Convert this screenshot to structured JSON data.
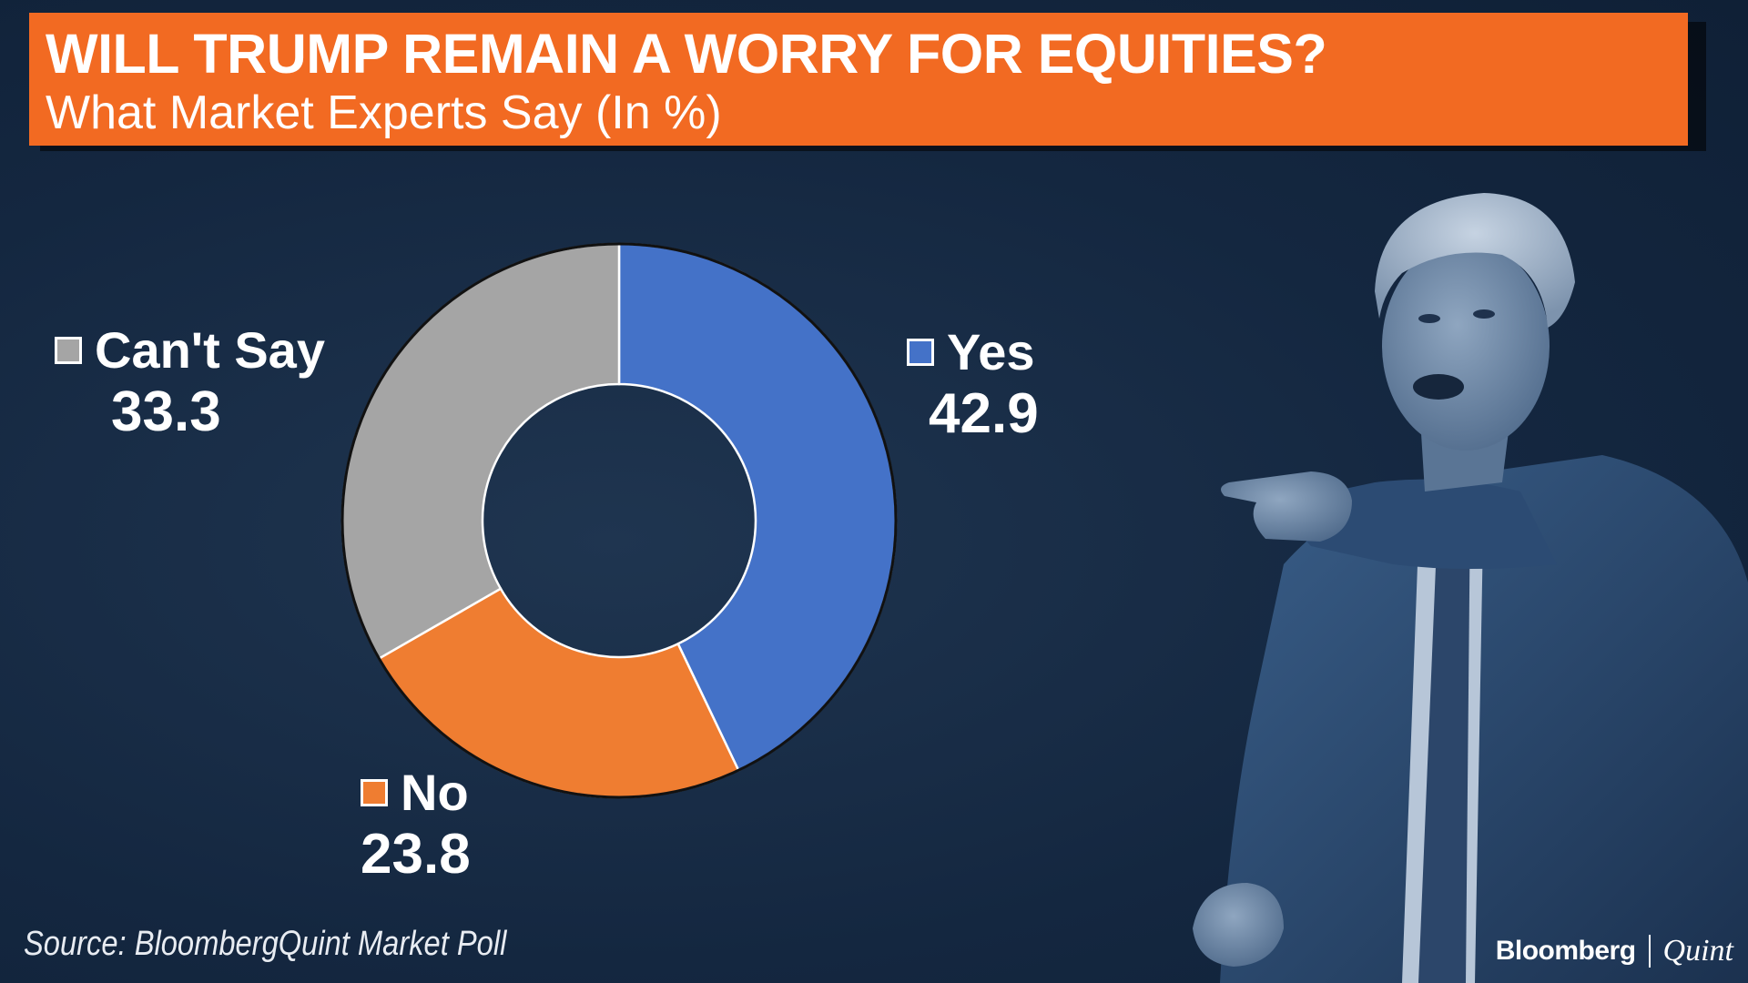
{
  "header": {
    "title": "WILL TRUMP REMAIN A WORRY FOR EQUITIES?",
    "subtitle": "What Market Experts Say (In %)"
  },
  "chart_data": {
    "type": "pie",
    "donut": true,
    "title": "WILL TRUMP REMAIN A WORRY FOR EQUITIES?",
    "subtitle": "What Market Experts Say (In %)",
    "categories": [
      "Yes",
      "No",
      "Can't Say"
    ],
    "values": [
      42.9,
      23.8,
      33.3
    ],
    "colors": [
      "#4472c8",
      "#ef7d31",
      "#a5a5a5"
    ],
    "legend_position": "around"
  },
  "legend": {
    "yes": {
      "label": "Yes",
      "value": "42.9"
    },
    "no": {
      "label": "No",
      "value": "23.8"
    },
    "cant_say": {
      "label": "Can't Say",
      "value": "33.3"
    }
  },
  "footer": {
    "source": "Source: BloombergQuint Market Poll",
    "logo_left": "Bloomberg",
    "logo_right": "Quint"
  },
  "colors": {
    "background": "#142740",
    "banner": "#f26a22",
    "yes": "#4472c8",
    "no": "#ef7d31",
    "cant_say": "#a5a5a5"
  }
}
